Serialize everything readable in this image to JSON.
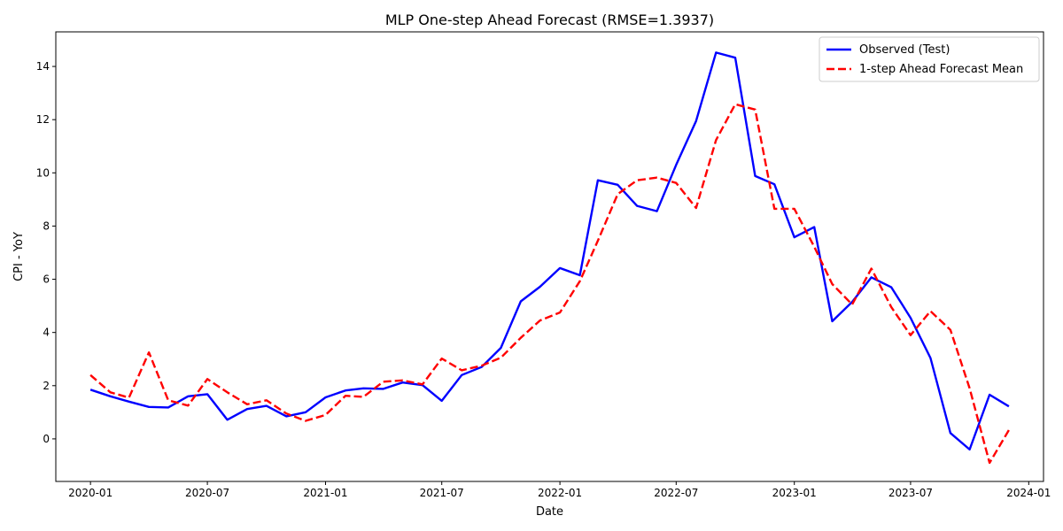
{
  "chart_data": {
    "type": "line",
    "title": "MLP One-step Ahead Forecast (RMSE=1.3937)",
    "xlabel": "Date",
    "ylabel": "CPI - YoY",
    "ylim": [
      -1.6,
      15.3
    ],
    "xlim": [
      "2019-11-08",
      "2024-01-24"
    ],
    "grid": false,
    "legend_position": "top-right",
    "x_ticks": [
      {
        "date": "2020-01-01",
        "label": "2020-01"
      },
      {
        "date": "2020-07-01",
        "label": "2020-07"
      },
      {
        "date": "2021-01-01",
        "label": "2021-01"
      },
      {
        "date": "2021-07-01",
        "label": "2021-07"
      },
      {
        "date": "2022-01-01",
        "label": "2022-01"
      },
      {
        "date": "2022-07-01",
        "label": "2022-07"
      },
      {
        "date": "2023-01-01",
        "label": "2023-01"
      },
      {
        "date": "2023-07-01",
        "label": "2023-07"
      },
      {
        "date": "2024-01-01",
        "label": "2024-01"
      }
    ],
    "y_ticks": [
      0,
      2,
      4,
      6,
      8,
      10,
      12,
      14
    ],
    "x": [
      "2020-01-01",
      "2020-02-01",
      "2020-03-01",
      "2020-04-01",
      "2020-05-01",
      "2020-06-01",
      "2020-07-01",
      "2020-08-01",
      "2020-09-01",
      "2020-10-01",
      "2020-11-01",
      "2020-12-01",
      "2021-01-01",
      "2021-02-01",
      "2021-03-01",
      "2021-04-01",
      "2021-05-01",
      "2021-06-01",
      "2021-07-01",
      "2021-08-01",
      "2021-09-01",
      "2021-10-01",
      "2021-11-01",
      "2021-12-01",
      "2022-01-01",
      "2022-02-01",
      "2022-03-01",
      "2022-04-01",
      "2022-05-01",
      "2022-06-01",
      "2022-07-01",
      "2022-08-01",
      "2022-09-01",
      "2022-10-01",
      "2022-11-01",
      "2022-12-01",
      "2023-01-01",
      "2023-02-01",
      "2023-03-01",
      "2023-04-01",
      "2023-05-01",
      "2023-06-01",
      "2023-07-01",
      "2023-08-01",
      "2023-09-01",
      "2023-10-01",
      "2023-11-01",
      "2023-12-01"
    ],
    "series": [
      {
        "name": "Observed (Test)",
        "color": "#0000ff",
        "style": "solid",
        "values": [
          1.85,
          1.6,
          1.4,
          1.2,
          1.18,
          1.6,
          1.68,
          0.72,
          1.12,
          1.24,
          0.85,
          1.0,
          1.56,
          1.82,
          1.9,
          1.88,
          2.12,
          2.02,
          1.43,
          2.4,
          2.7,
          3.42,
          5.17,
          5.72,
          6.42,
          6.15,
          9.72,
          9.55,
          8.76,
          8.56,
          10.3,
          11.95,
          14.52,
          14.33,
          9.88,
          9.57,
          7.58,
          7.96,
          4.42,
          5.15,
          6.07,
          5.7,
          4.55,
          3.04,
          0.22,
          -0.4,
          1.66,
          1.22
        ]
      },
      {
        "name": "1-step Ahead Forecast Mean",
        "color": "#ff0000",
        "style": "dashed",
        "values": [
          2.4,
          1.75,
          1.55,
          3.25,
          1.45,
          1.25,
          2.25,
          1.75,
          1.3,
          1.45,
          0.95,
          0.68,
          0.9,
          1.62,
          1.58,
          2.15,
          2.2,
          2.05,
          3.02,
          2.58,
          2.75,
          3.05,
          3.8,
          4.45,
          4.75,
          5.93,
          7.45,
          9.2,
          9.72,
          9.82,
          9.62,
          8.68,
          11.23,
          12.58,
          12.38,
          8.65,
          8.65,
          7.22,
          5.82,
          5.05,
          6.4,
          4.95,
          3.9,
          4.8,
          4.1,
          1.9,
          -0.9,
          0.33
        ]
      }
    ]
  }
}
